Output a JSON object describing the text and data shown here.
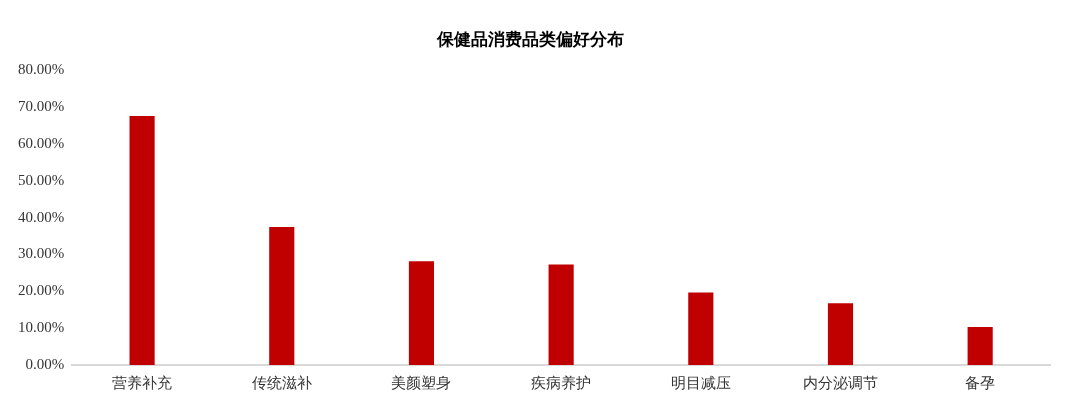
{
  "chart_data": {
    "type": "bar",
    "title": "保健品消费品类偏好分布",
    "categories": [
      "营养补充",
      "传统滋补",
      "美颜塑身",
      "疾病养护",
      "明目减压",
      "内分泌调节",
      "备孕"
    ],
    "values": [
      67.6,
      37.5,
      28.2,
      27.3,
      19.7,
      16.8,
      10.3
    ],
    "color": "#c00000",
    "ylim": [
      0,
      80
    ],
    "yticks": [
      {
        "value": 0,
        "label": "0.00%"
      },
      {
        "value": 10,
        "label": "10.00%"
      },
      {
        "value": 20,
        "label": "20.00%"
      },
      {
        "value": 30,
        "label": "30.00%"
      },
      {
        "value": 40,
        "label": "40.00%"
      },
      {
        "value": 50,
        "label": "50.00%"
      },
      {
        "value": 60,
        "label": "60.00%"
      },
      {
        "value": 70,
        "label": "70.00%"
      },
      {
        "value": 80,
        "label": "80.00%"
      }
    ],
    "grid": false,
    "legend": false
  }
}
